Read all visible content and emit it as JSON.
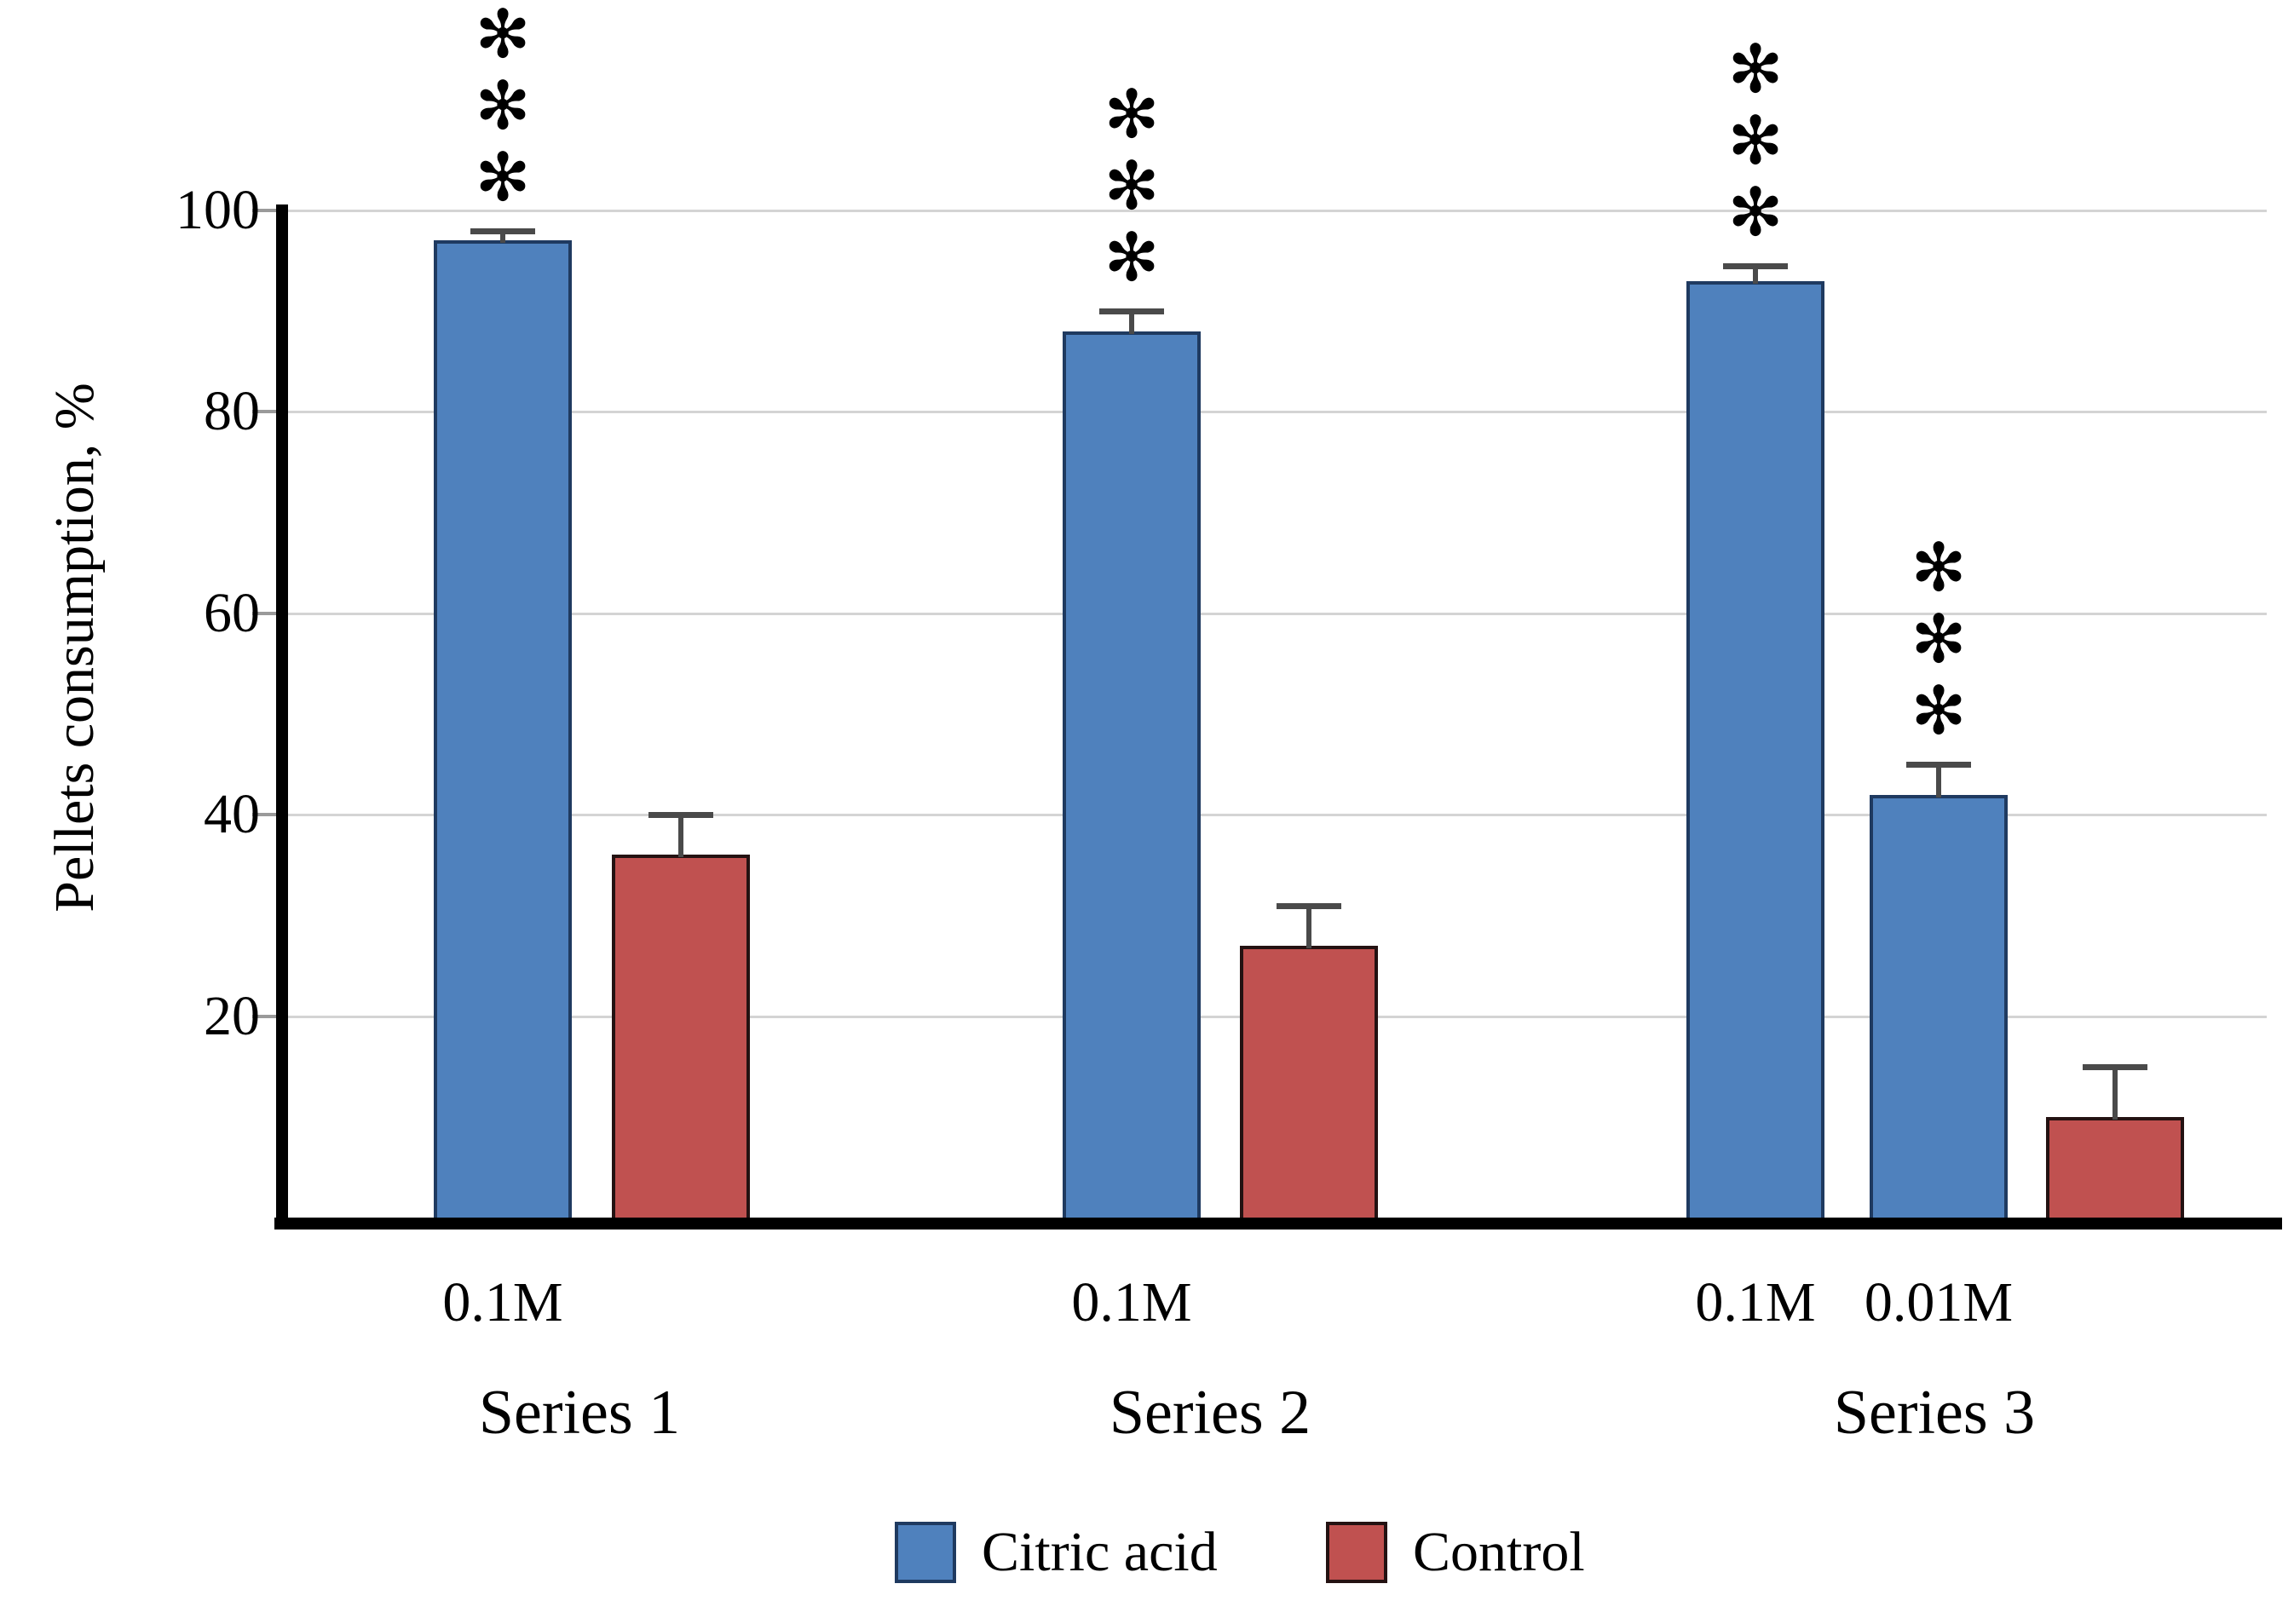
{
  "chart_data": {
    "type": "bar",
    "title": "",
    "xlabel": "",
    "ylabel": "Pellets consumption, %",
    "ylim": [
      0,
      100
    ],
    "yticks": [
      20,
      40,
      60,
      80,
      100
    ],
    "grid": "horizontal",
    "legend_position": "bottom-center",
    "groups": [
      {
        "name": "Series 1",
        "bars": [
          {
            "series": "Citric acid",
            "concentration": "0.1M",
            "value": 97,
            "error": 1,
            "significance": "***"
          },
          {
            "series": "Control",
            "concentration": "",
            "value": 36,
            "error": 4,
            "significance": ""
          }
        ]
      },
      {
        "name": "Series 2",
        "bars": [
          {
            "series": "Citric acid",
            "concentration": "0.1M",
            "value": 88,
            "error": 2,
            "significance": "***"
          },
          {
            "series": "Control",
            "concentration": "",
            "value": 27,
            "error": 4,
            "significance": ""
          }
        ]
      },
      {
        "name": "Series 3",
        "bars": [
          {
            "series": "Citric acid",
            "concentration": "0.1M",
            "value": 93,
            "error": 1.5,
            "significance": "***"
          },
          {
            "series": "Citric acid",
            "concentration": "0.01M",
            "value": 42,
            "error": 3,
            "significance": "***"
          },
          {
            "series": "Control",
            "concentration": "",
            "value": 10,
            "error": 5,
            "significance": ""
          }
        ]
      }
    ],
    "legend": [
      {
        "label": "Citric acid",
        "color": "#4f81bd"
      },
      {
        "label": "Control",
        "color": "#c05150"
      }
    ],
    "colors": {
      "citric_fill": "#4f81bd",
      "citric_border": "#1f3a60",
      "control_fill": "#c05150",
      "control_border": "#241212",
      "gridline": "#d4d4d4",
      "error_bar": "#4a4a4a",
      "axis": "#000000",
      "text": "#000000"
    },
    "significance_symbol": "✻"
  }
}
